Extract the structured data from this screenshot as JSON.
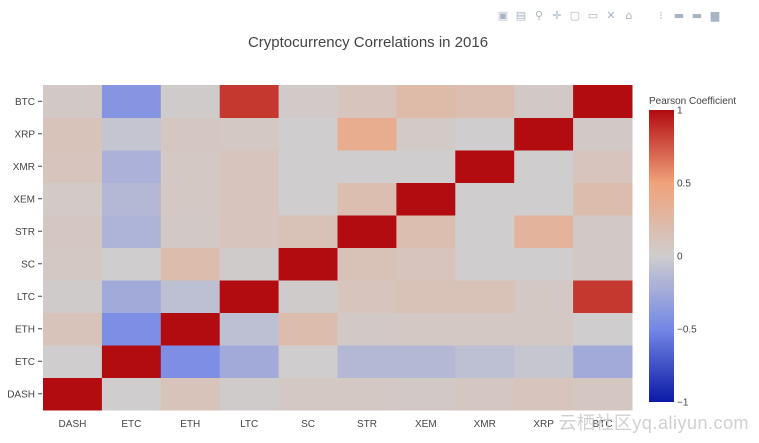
{
  "modebar": {
    "buttons": [
      {
        "icon": "camera-icon",
        "glyph": "▣"
      },
      {
        "icon": "save-icon",
        "glyph": "▤"
      },
      {
        "icon": "zoom-icon",
        "glyph": "⚲"
      },
      {
        "icon": "pan-icon",
        "glyph": "✛"
      },
      {
        "icon": "box-select-icon",
        "glyph": "▢"
      },
      {
        "icon": "lasso-icon",
        "glyph": "▭"
      },
      {
        "icon": "autoscale-icon",
        "glyph": "✕"
      },
      {
        "icon": "reset-axes-icon",
        "glyph": "⌂"
      },
      {
        "icon": "spike-lines-icon",
        "glyph": "⁝"
      },
      {
        "icon": "hover-closest-icon",
        "glyph": "▬"
      },
      {
        "icon": "hover-compare-icon",
        "glyph": "▬"
      },
      {
        "icon": "plotly-logo-icon",
        "glyph": "▆"
      }
    ]
  },
  "watermark": "云栖社区yq.aliyun.com",
  "chart_data": {
    "type": "heatmap",
    "title": "Cryptocurrency Correlations in 2016",
    "x": [
      "DASH",
      "ETC",
      "ETH",
      "LTC",
      "SC",
      "STR",
      "XEM",
      "XMR",
      "XRP",
      "BTC"
    ],
    "y": [
      "DASH",
      "ETC",
      "ETH",
      "LTC",
      "SC",
      "STR",
      "XEM",
      "XMR",
      "XRP",
      "BTC"
    ],
    "z": [
      [
        1.0,
        0.0,
        0.12,
        0.02,
        0.06,
        0.06,
        0.05,
        0.08,
        0.1,
        0.07
      ],
      [
        0.0,
        1.0,
        -0.45,
        -0.25,
        0.0,
        -0.15,
        -0.15,
        -0.1,
        -0.05,
        -0.25
      ],
      [
        0.12,
        -0.45,
        1.0,
        -0.1,
        0.2,
        0.05,
        0.06,
        0.06,
        0.06,
        0.0
      ],
      [
        0.02,
        -0.25,
        -0.1,
        1.0,
        0.02,
        0.1,
        0.14,
        0.14,
        0.06,
        0.85
      ],
      [
        0.06,
        0.0,
        0.2,
        0.02,
        1.0,
        0.14,
        0.1,
        0.0,
        0.0,
        0.05
      ],
      [
        0.07,
        -0.18,
        0.05,
        0.1,
        0.14,
        1.0,
        0.18,
        0.0,
        0.3,
        0.05
      ],
      [
        0.04,
        -0.15,
        0.06,
        0.1,
        0.0,
        0.18,
        1.0,
        0.0,
        0.0,
        0.2
      ],
      [
        0.1,
        -0.2,
        0.06,
        0.1,
        0.0,
        0.0,
        0.0,
        1.0,
        0.0,
        0.1
      ],
      [
        0.12,
        -0.06,
        0.08,
        0.06,
        0.0,
        0.38,
        0.04,
        0.0,
        1.0,
        0.05
      ],
      [
        0.05,
        -0.4,
        0.02,
        0.85,
        0.03,
        0.1,
        0.22,
        0.18,
        0.05,
        1.0
      ]
    ],
    "zmin": -1,
    "zmax": 1,
    "colorscale": [
      [
        -1.0,
        "#0b1aa6"
      ],
      [
        -0.5,
        "#7487e6"
      ],
      [
        0.0,
        "#cfcdce"
      ],
      [
        0.5,
        "#f0a27a"
      ],
      [
        1.0,
        "#b20b10"
      ]
    ],
    "colorbar": {
      "title": "Pearson Coefficient",
      "ticks": [
        1,
        0.5,
        0,
        -0.5,
        -1
      ],
      "tick_labels": [
        "1",
        "0.5",
        "0",
        "−0.5",
        "−1"
      ]
    }
  }
}
